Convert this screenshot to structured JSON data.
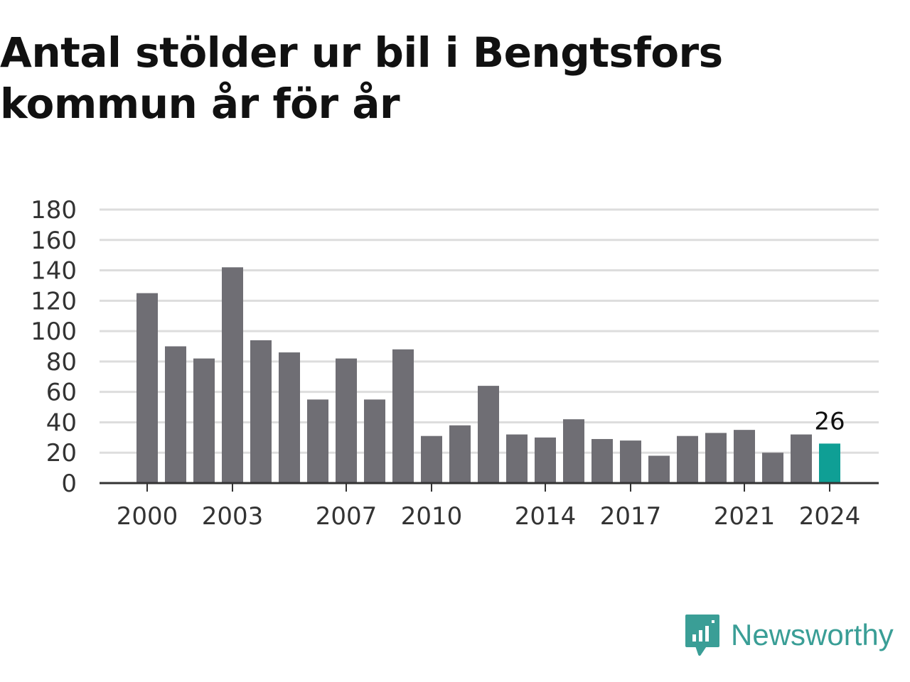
{
  "chart_data": {
    "type": "bar",
    "title": "Antal stölder ur bil i Bengtsfors kommun år för år",
    "title_lines": [
      "Antal stölder ur bil i Bengtsfors",
      "kommun år för år"
    ],
    "categories": [
      2000,
      2001,
      2002,
      2003,
      2004,
      2005,
      2006,
      2007,
      2008,
      2009,
      2010,
      2011,
      2012,
      2013,
      2014,
      2015,
      2016,
      2017,
      2018,
      2019,
      2020,
      2021,
      2022,
      2023,
      2024
    ],
    "values": [
      125,
      90,
      82,
      142,
      94,
      86,
      55,
      82,
      55,
      88,
      31,
      38,
      64,
      32,
      30,
      42,
      29,
      28,
      18,
      31,
      33,
      35,
      20,
      32,
      26
    ],
    "xtick_labels": [
      "2000",
      "2003",
      "2007",
      "2010",
      "2014",
      "2017",
      "2021",
      "2024"
    ],
    "ytick_labels": [
      "0",
      "20",
      "40",
      "60",
      "80",
      "100",
      "120",
      "140",
      "160",
      "180"
    ],
    "ylim": [
      0,
      180
    ],
    "grid": true,
    "highlight": {
      "category": 2024,
      "label": "26"
    },
    "colors": {
      "bar": "#6f6e74",
      "highlight": "#0f9f95",
      "grid": "#dddddd",
      "axis": "#333333"
    }
  },
  "brand": {
    "name": "Newsworthy",
    "icon": "newsworthy-logo-icon",
    "color": "#3a9e96"
  }
}
